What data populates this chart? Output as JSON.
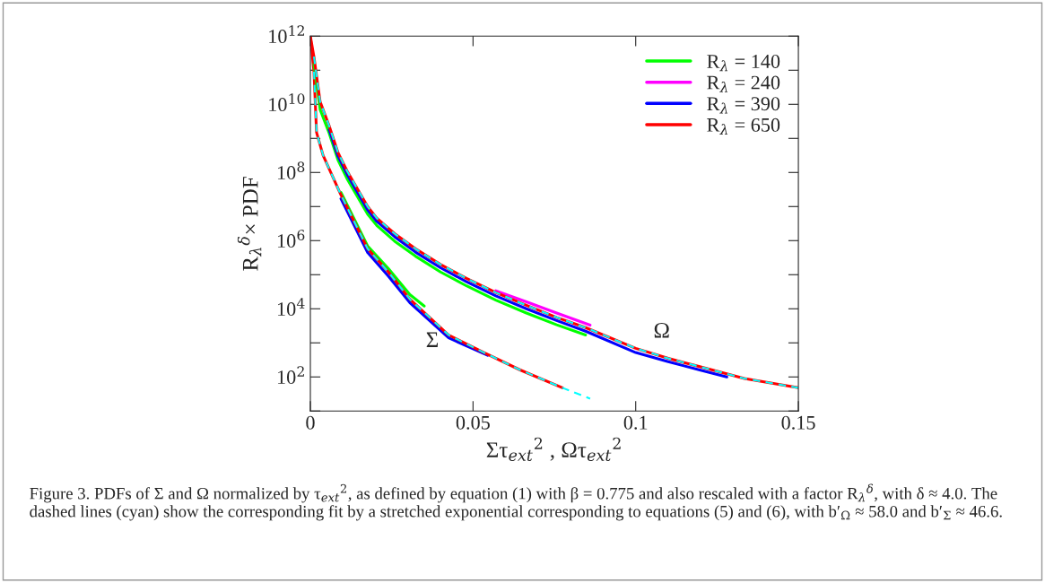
{
  "chart_data": {
    "type": "line",
    "xlabel": "Στ$_{ext}$$^{2}$ , Ωτ$_{ext}$$^{2}$",
    "ylabel": "R$_{λ}$$^{δ}$× PDF",
    "xlim": [
      0,
      0.15
    ],
    "xticks": [
      0,
      0.05,
      0.1,
      0.15
    ],
    "ylim": [
      10,
      1000000000000.0
    ],
    "log": "y",
    "yticks": [
      {
        "value": 10,
        "label": null
      },
      {
        "value": 100,
        "label": "10$^{2}$"
      },
      {
        "value": 1000,
        "label": null
      },
      {
        "value": 10000,
        "label": "10$^{4}$"
      },
      {
        "value": 100000,
        "label": null
      },
      {
        "value": 1000000,
        "label": "10$^{6}$"
      },
      {
        "value": 10000000,
        "label": null
      },
      {
        "value": 100000000,
        "label": "10$^{8}$"
      },
      {
        "value": 1000000000,
        "label": null
      },
      {
        "value": 10000000000,
        "label": "10$^{10}$"
      },
      {
        "value": 100000000000,
        "label": null
      },
      {
        "value": 1000000000000,
        "label": "10$^{12}$"
      }
    ],
    "grid": false,
    "legend": "top right",
    "line_style": "solid",
    "marker": "none",
    "series": [
      {
        "color": "#00ff00",
        "x": [
          0.0094,
          0.0176,
          0.024,
          0.0306,
          0.035
        ],
        "values": [
          26000000.0,
          700000.0,
          150000.0,
          26000.0,
          12000.0
        ]
      },
      {
        "color": "#0000ff",
        "x": [
          0.0094,
          0.0176,
          0.024,
          0.0306,
          0.0425,
          0.0545
        ],
        "values": [
          17000000.0,
          450000.0,
          90000.0,
          15000.0,
          1400.0,
          430
        ]
      },
      {
        "color": "#ff0000",
        "x": [
          0,
          0.0011,
          0.0019,
          0.0039,
          0.0094,
          0.0176,
          0.024,
          0.0306,
          0.0425,
          0.0535,
          0.0645,
          0.0775
        ],
        "values": [
          1000000000000.0,
          90000000000.0,
          1500000000.0,
          320000000.0,
          22000000.0,
          580000.0,
          120000.0,
          19000.0,
          1700.0,
          510,
          160,
          48
        ]
      },
      {
        "name": "R$_{λ}$ = 140",
        "color": "#00ff00",
        "x": [
          0.0011,
          0.003,
          0.0058,
          0.0085,
          0.0113,
          0.0176,
          0.0204,
          0.0259,
          0.0323,
          0.04,
          0.048,
          0.057,
          0.0664,
          0.0757,
          0.0846
        ],
        "values": [
          150000000000.0,
          7000000000.0,
          1400000000.0,
          230000000.0,
          65000000.0,
          6000000.0,
          2800000.0,
          960000.0,
          350000.0,
          120000.0,
          47000.0,
          18000.0,
          7500.0,
          3400.0,
          1700.0
        ]
      },
      {
        "name": "R$_{λ}$ = 240",
        "color": "#ff00ff",
        "x": [
          0.057,
          0.0664,
          0.0757,
          0.086
        ],
        "values": [
          34000.0,
          16000.0,
          7500.0,
          3300.0
        ]
      },
      {
        "name": "R$_{λ}$ = 390",
        "color": "#0000ff",
        "x": [
          0.0058,
          0.0085,
          0.0113,
          0.0176,
          0.0204,
          0.0259,
          0.0323,
          0.04,
          0.048,
          0.057,
          0.0664,
          0.0757,
          0.0846,
          0.1,
          0.11,
          0.1197,
          0.128
        ],
        "values": [
          1800000000.0,
          300000000.0,
          88000000.0,
          8000000.0,
          3700000.0,
          1300000.0,
          460000.0,
          160000.0,
          62000.0,
          24000.0,
          10000.0,
          4500.0,
          2200.0,
          520,
          280,
          160,
          100
        ]
      },
      {
        "name": "R$_{λ}$ = 650",
        "color": "#ff0000",
        "x": [
          0,
          0.0011,
          0.003,
          0.0058,
          0.0085,
          0.0113,
          0.0176,
          0.0204,
          0.0259,
          0.0323,
          0.04,
          0.048,
          0.057,
          0.0664,
          0.0757,
          0.0846,
          0.1,
          0.11,
          0.1197,
          0.1334,
          0.15
        ],
        "values": [
          1000000000000.0,
          250000000000.0,
          12000000000.0,
          2300000000.0,
          380000000.0,
          110000000.0,
          10000000.0,
          4600000.0,
          1600000.0,
          580000.0,
          200000.0,
          78000.0,
          30000.0,
          12600.0,
          5600.0,
          2800.0,
          690,
          350,
          200,
          90,
          48
        ]
      },
      {
        "color": "#00ffff",
        "line_style": "dashed",
        "x": [
          0.0011,
          0.0019,
          0.0039,
          0.0094,
          0.0176,
          0.024,
          0.0306,
          0.0425,
          0.0535,
          0.0645,
          0.0775,
          0.086
        ],
        "values": [
          90000000000.0,
          1500000000.0,
          320000000.0,
          22000000.0,
          580000.0,
          120000.0,
          19000.0,
          1700.0,
          510,
          160,
          48,
          23
        ]
      },
      {
        "color": "#00ffff",
        "line_style": "dashed",
        "x": [
          0.0011,
          0.003,
          0.0058,
          0.0085,
          0.0113,
          0.0176,
          0.0204,
          0.0259,
          0.0323,
          0.04,
          0.048,
          0.057,
          0.0664,
          0.0757,
          0.0846,
          0.1,
          0.11,
          0.1197,
          0.1334,
          0.15
        ],
        "values": [
          250000000000.0,
          12000000000.0,
          2300000000.0,
          380000000.0,
          110000000.0,
          10000000.0,
          4600000.0,
          1600000.0,
          580000.0,
          200000.0,
          78000.0,
          30000.0,
          12600.0,
          5600.0,
          2800.0,
          690,
          350,
          200,
          90,
          48
        ]
      }
    ],
    "annotations": [
      "Σ",
      "Ω",
      "Figure 3. PDFs of Σ and Ω normalized by τ$_{ext}$$^{2}$, as defined by equation (1) with β = 0.775 and also rescaled with a factor R$_{λ}$$^{δ}$, with δ ≈ 4.0. The dashed lines (cyan) show the corresponding fit by a stretched exponential corresponding to equations (5) and (6), with b′$_{Ω}$ ≈ 58.0 and b′$_{Σ}$ ≈ 46.6."
    ]
  }
}
